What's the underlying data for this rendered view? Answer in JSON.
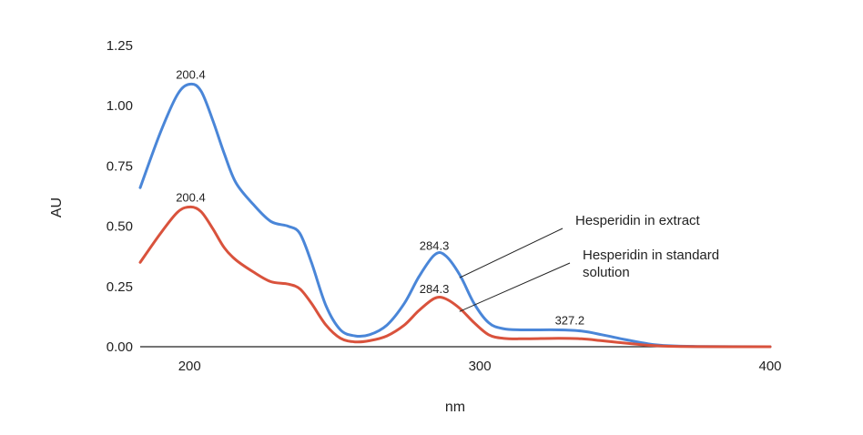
{
  "chart_data": {
    "type": "line",
    "xlabel": "nm",
    "ylabel": "AU",
    "xlim": [
      183,
      400
    ],
    "ylim": [
      0,
      1.25
    ],
    "x_ticks": [
      200,
      300,
      400
    ],
    "y_ticks": [
      0,
      0.25,
      0.5,
      0.75,
      1.0,
      1.25
    ],
    "y_tick_labels": [
      "0.00",
      "0.25",
      "0.50",
      "0.75",
      "1.00",
      "1.25"
    ],
    "grid": false,
    "series": [
      {
        "name": "Hesperidin in extract",
        "color": "#4a86d8",
        "points": [
          [
            183,
            0.66
          ],
          [
            190,
            0.89
          ],
          [
            196,
            1.05
          ],
          [
            200.4,
            1.09
          ],
          [
            204,
            1.06
          ],
          [
            208,
            0.94
          ],
          [
            212,
            0.8
          ],
          [
            216,
            0.68
          ],
          [
            222,
            0.59
          ],
          [
            228,
            0.52
          ],
          [
            234,
            0.5
          ],
          [
            238,
            0.47
          ],
          [
            242,
            0.35
          ],
          [
            247,
            0.17
          ],
          [
            252,
            0.07
          ],
          [
            257,
            0.045
          ],
          [
            262,
            0.05
          ],
          [
            268,
            0.09
          ],
          [
            274,
            0.18
          ],
          [
            279,
            0.29
          ],
          [
            284.3,
            0.38
          ],
          [
            288,
            0.38
          ],
          [
            293,
            0.3
          ],
          [
            298,
            0.18
          ],
          [
            303,
            0.1
          ],
          [
            308,
            0.075
          ],
          [
            315,
            0.07
          ],
          [
            327.2,
            0.07
          ],
          [
            335,
            0.065
          ],
          [
            342,
            0.05
          ],
          [
            350,
            0.03
          ],
          [
            358,
            0.012
          ],
          [
            365,
            0.004
          ],
          [
            375,
            0.001
          ],
          [
            400,
            0
          ]
        ]
      },
      {
        "name": "Hesperidin in standard solution",
        "color": "#d9523c",
        "points": [
          [
            183,
            0.35
          ],
          [
            190,
            0.47
          ],
          [
            196,
            0.56
          ],
          [
            200.4,
            0.58
          ],
          [
            204,
            0.56
          ],
          [
            208,
            0.49
          ],
          [
            212,
            0.41
          ],
          [
            216,
            0.36
          ],
          [
            222,
            0.31
          ],
          [
            228,
            0.27
          ],
          [
            234,
            0.26
          ],
          [
            238,
            0.24
          ],
          [
            242,
            0.18
          ],
          [
            247,
            0.09
          ],
          [
            252,
            0.035
          ],
          [
            257,
            0.02
          ],
          [
            262,
            0.025
          ],
          [
            268,
            0.045
          ],
          [
            274,
            0.09
          ],
          [
            279,
            0.15
          ],
          [
            284.3,
            0.2
          ],
          [
            288,
            0.2
          ],
          [
            293,
            0.16
          ],
          [
            298,
            0.1
          ],
          [
            303,
            0.05
          ],
          [
            308,
            0.035
          ],
          [
            315,
            0.033
          ],
          [
            327.2,
            0.035
          ],
          [
            335,
            0.033
          ],
          [
            342,
            0.025
          ],
          [
            350,
            0.015
          ],
          [
            358,
            0.006
          ],
          [
            365,
            0.002
          ],
          [
            375,
            0.0005
          ],
          [
            400,
            0
          ]
        ]
      }
    ],
    "annotations": [
      {
        "text": "200.4",
        "x": 200.4,
        "y": 1.09,
        "series": 0
      },
      {
        "text": "200.4",
        "x": 200.4,
        "y": 0.58,
        "series": 1
      },
      {
        "text": "284.3",
        "x": 284.3,
        "y": 0.38,
        "series": 0
      },
      {
        "text": "284.3",
        "x": 284.3,
        "y": 0.2,
        "series": 1
      },
      {
        "text": "327.2",
        "x": 327.2,
        "y": 0.07,
        "series": 0
      }
    ],
    "legend_labels": [
      {
        "lines": [
          "Hesperidin in extract"
        ],
        "series": 0,
        "pointer_x": 293,
        "pointer_y": 0.29
      },
      {
        "lines": [
          "Hesperidin in standard",
          "solution"
        ],
        "series": 1,
        "pointer_x": 293,
        "pointer_y": 0.15
      }
    ]
  }
}
